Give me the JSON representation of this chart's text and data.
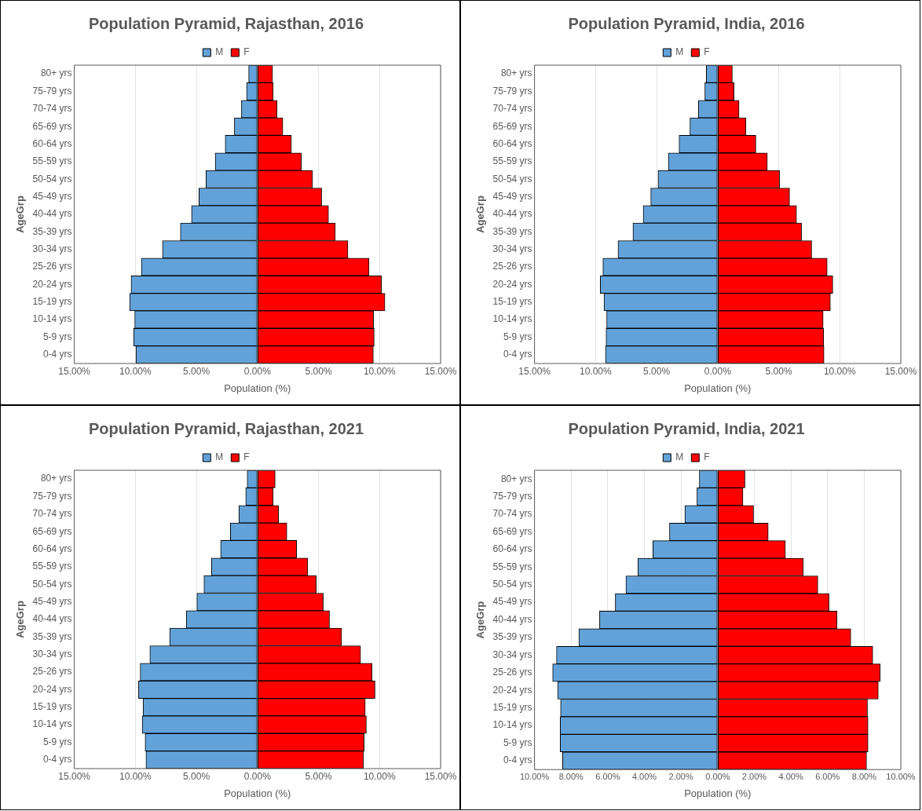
{
  "chart_data": [
    {
      "type": "bar",
      "title": "Population Pyramid, Rajasthan, 2016",
      "orientation": "horizontal",
      "stacked": true,
      "xlabel": "Population (%)",
      "ylabel": "AgeGrp",
      "legend": "top",
      "grid": "x",
      "categories": [
        "80+ yrs",
        "75-79 yrs",
        "70-74 yrs",
        "65-69 yrs",
        "60-64 yrs",
        "55-59 yrs",
        "50-54 yrs",
        "45-49 yrs",
        "40-44 yrs",
        "35-39 yrs",
        "30-34 yrs",
        "25-26 yrs",
        "20-24 yrs",
        "15-19 yrs",
        "10-14 yrs",
        "5-9 yrs",
        "0-4 yrs"
      ],
      "xlim": [
        -15,
        15
      ],
      "xticks": [
        {
          "value": -15,
          "label": "15.00%"
        },
        {
          "value": -10,
          "label": "10.00%"
        },
        {
          "value": -5,
          "label": "5.00%"
        },
        {
          "value": 0,
          "label": "0.00%"
        },
        {
          "value": 5,
          "label": "5.00%"
        },
        {
          "value": 10,
          "label": "10.00%"
        },
        {
          "value": 15,
          "label": "15.00%"
        }
      ],
      "series": [
        {
          "name": "M",
          "color": "#62a2d9",
          "values": [
            -0.72,
            -0.89,
            -1.31,
            -1.89,
            -2.64,
            -3.46,
            -4.21,
            -4.79,
            -5.4,
            -6.31,
            -7.78,
            -9.51,
            -10.35,
            -10.47,
            -10.05,
            -10.14,
            -9.95
          ]
        },
        {
          "name": "F",
          "color": "#ff0000",
          "values": [
            1.24,
            1.29,
            1.61,
            2.08,
            2.78,
            3.6,
            4.51,
            5.26,
            5.82,
            6.38,
            7.41,
            9.14,
            10.16,
            10.44,
            9.51,
            9.56,
            9.49
          ]
        }
      ]
    },
    {
      "type": "bar",
      "title": "Population Pyramid, India, 2016",
      "orientation": "horizontal",
      "stacked": true,
      "xlabel": "Population (%)",
      "ylabel": "AgeGrp",
      "legend": "top",
      "grid": "x",
      "categories": [
        "80+ yrs",
        "75-79 yrs",
        "70-74 yrs",
        "65-69 yrs",
        "60-64 yrs",
        "55-59 yrs",
        "50-54 yrs",
        "45-49 yrs",
        "40-44 yrs",
        "35-39 yrs",
        "30-34 yrs",
        "25-26 yrs",
        "20-24 yrs",
        "15-19 yrs",
        "10-14 yrs",
        "5-9 yrs",
        "0-4 yrs"
      ],
      "xlim": [
        -15,
        15
      ],
      "xticks": [
        {
          "value": -15,
          "label": "15.00%"
        },
        {
          "value": -10,
          "label": "10.00%"
        },
        {
          "value": -5,
          "label": "5.00%"
        },
        {
          "value": 0,
          "label": "0.00%"
        },
        {
          "value": 5,
          "label": "5.00%"
        },
        {
          "value": 10,
          "label": "10.00%"
        },
        {
          "value": 15,
          "label": "15.00%"
        }
      ],
      "series": [
        {
          "name": "M",
          "color": "#62a2d9",
          "values": [
            -0.93,
            -1.05,
            -1.58,
            -2.27,
            -3.16,
            -4.04,
            -4.88,
            -5.48,
            -6.1,
            -6.94,
            -8.16,
            -9.4,
            -9.62,
            -9.31,
            -9.09,
            -9.14,
            -9.19
          ]
        },
        {
          "name": "F",
          "color": "#ff0000",
          "values": [
            1.2,
            1.34,
            1.75,
            2.32,
            3.13,
            4.07,
            5.07,
            5.89,
            6.46,
            6.87,
            7.7,
            8.97,
            9.43,
            9.23,
            8.64,
            8.68,
            8.71
          ]
        }
      ]
    },
    {
      "type": "bar",
      "title": "Population Pyramid, Rajasthan, 2021",
      "orientation": "horizontal",
      "stacked": true,
      "xlabel": "Population (%)",
      "ylabel": "AgeGrp",
      "legend": "top",
      "grid": "x",
      "categories": [
        "80+ yrs",
        "75-79 yrs",
        "70-74 yrs",
        "65-69 yrs",
        "60-64 yrs",
        "55-59 yrs",
        "50-54 yrs",
        "45-49 yrs",
        "40-44 yrs",
        "35-39 yrs",
        "30-34 yrs",
        "25-26 yrs",
        "20-24 yrs",
        "15-19 yrs",
        "10-14 yrs",
        "5-9 yrs",
        "0-4 yrs"
      ],
      "xlim": [
        -15,
        15
      ],
      "xticks": [
        {
          "value": -15,
          "label": "15.00%"
        },
        {
          "value": -10,
          "label": "10.00%"
        },
        {
          "value": -5,
          "label": "5.00%"
        },
        {
          "value": 0,
          "label": "0.00%"
        },
        {
          "value": 5,
          "label": "5.00%"
        },
        {
          "value": 10,
          "label": "10.00%"
        },
        {
          "value": 15,
          "label": "15.00%"
        }
      ],
      "series": [
        {
          "name": "M",
          "color": "#62a2d9",
          "values": [
            -0.84,
            -0.96,
            -1.52,
            -2.22,
            -3.02,
            -3.77,
            -4.38,
            -4.96,
            -5.83,
            -7.19,
            -8.81,
            -9.6,
            -9.74,
            -9.37,
            -9.44,
            -9.2,
            -9.13
          ]
        },
        {
          "name": "F",
          "color": "#ff0000",
          "values": [
            1.45,
            1.29,
            1.73,
            2.41,
            3.21,
            4.12,
            4.82,
            5.39,
            5.9,
            6.89,
            8.45,
            9.39,
            9.63,
            8.83,
            8.92,
            8.74,
            8.69
          ]
        }
      ]
    },
    {
      "type": "bar",
      "title": "Population Pyramid, India, 2021",
      "orientation": "horizontal",
      "stacked": true,
      "xlabel": "Population (%)",
      "ylabel": "AgeGrp",
      "legend": "top",
      "grid": "x",
      "categories": [
        "80+ yrs",
        "75-79 yrs",
        "70-74 yrs",
        "65-69 yrs",
        "60-64 yrs",
        "55-59 yrs",
        "50-54 yrs",
        "45-49 yrs",
        "40-44 yrs",
        "35-39 yrs",
        "30-34 yrs",
        "25-26 yrs",
        "20-24 yrs",
        "15-19 yrs",
        "10-14 yrs",
        "5-9 yrs",
        "0-4 yrs"
      ],
      "xlim": [
        -10,
        10
      ],
      "xticks": [
        {
          "value": -10,
          "label": "10.00%"
        },
        {
          "value": -8,
          "label": "8.00%"
        },
        {
          "value": -6,
          "label": "6.00%"
        },
        {
          "value": -4,
          "label": "4.00%"
        },
        {
          "value": -2,
          "label": "2.00%"
        },
        {
          "value": 0,
          "label": "0.00%"
        },
        {
          "value": 2,
          "label": "2.00%"
        },
        {
          "value": 4,
          "label": "4.00%"
        },
        {
          "value": 6,
          "label": "6.00%"
        },
        {
          "value": 8,
          "label": "8.00%"
        },
        {
          "value": 10,
          "label": "10.00%"
        }
      ],
      "series": [
        {
          "name": "M",
          "color": "#62a2d9",
          "values": [
            -1.0,
            -1.13,
            -1.79,
            -2.63,
            -3.54,
            -4.35,
            -5.01,
            -5.59,
            -6.45,
            -7.58,
            -8.8,
            -9.01,
            -8.74,
            -8.58,
            -8.6,
            -8.6,
            -8.47
          ]
        },
        {
          "name": "F",
          "color": "#ff0000",
          "values": [
            1.49,
            1.38,
            1.96,
            2.76,
            3.7,
            4.68,
            5.47,
            6.08,
            6.52,
            7.27,
            8.47,
            8.88,
            8.77,
            8.18,
            8.21,
            8.21,
            8.13
          ]
        }
      ]
    }
  ]
}
